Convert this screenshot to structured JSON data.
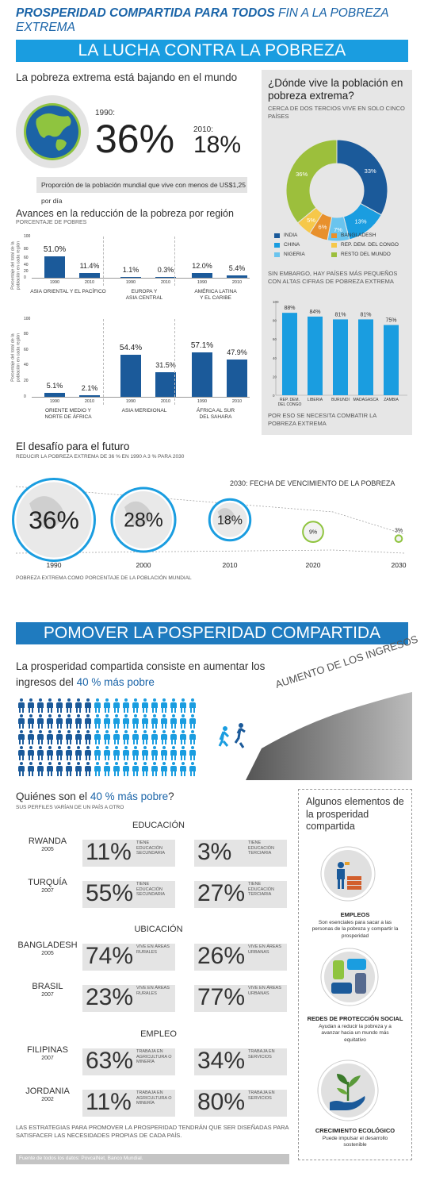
{
  "header": {
    "title_bold": "PROSPERIDAD COMPARTIDA PARA TODOS",
    "title_light": "FIN A LA POBREZA EXTREMA",
    "banner1": "LA LUCHA CONTRA LA POBREZA",
    "banner2": "POMOVER LA POSPERIDAD COMPARTIDA"
  },
  "extreme": {
    "heading": "La pobreza extrema está bajando en el mundo",
    "y1990_label": "1990:",
    "y1990_value": "36%",
    "y2010_label": "2010:",
    "y2010_value": "18%",
    "note": "Proporción de la población mundial que vive con menos de US$1,25 por día"
  },
  "regions": {
    "heading": "Avances en la reducción de la pobreza por región",
    "subheading": "PORCENTAJE DE POBRES",
    "ylabel": "Porcentaje del total de la población en cada región",
    "ticks_top": [
      "100",
      "80",
      "60",
      "40",
      "20",
      "0"
    ],
    "ticks_bottom": [
      "100",
      "80",
      "60",
      "40",
      "20",
      "0"
    ],
    "x_years": [
      "1990",
      "2010"
    ],
    "groups": [
      {
        "name": "ASIA ORIENTAL Y EL PACÍFICO",
        "v1990": 51.0,
        "v2010": 11.4,
        "l1990": "51.0%",
        "l2010": "11.4%"
      },
      {
        "name": "EUROPA Y\nASIA CENTRAL",
        "v1990": 1.1,
        "v2010": 0.3,
        "l1990": "1.1%",
        "l2010": "0.3%"
      },
      {
        "name": "AMÉRICA LATINA\nY EL CARIBE",
        "v1990": 12.0,
        "v2010": 5.4,
        "l1990": "12.0%",
        "l2010": "5.4%"
      },
      {
        "name": "ORIENTE MEDIO Y\nNORTE DE ÁFRICA",
        "v1990": 5.1,
        "v2010": 2.1,
        "l1990": "5.1%",
        "l2010": "2.1%"
      },
      {
        "name": "ASIA MERIDIONAL",
        "v1990": 54.4,
        "v2010": 31.5,
        "l1990": "54.4%",
        "l2010": "31.5%"
      },
      {
        "name": "ÁFRICA AL SUR\nDEL SAHARA",
        "v1990": 57.1,
        "v2010": 47.9,
        "l1990": "57.1%",
        "l2010": "47.9%"
      }
    ]
  },
  "where": {
    "heading": "¿Dónde vive la población en pobreza extrema?",
    "sub": "CERCA DE DOS TERCIOS VIVE EN SOLO CINCO PAÍSES",
    "slices": [
      {
        "name": "INDIA",
        "value": 33,
        "label": "33%",
        "color": "#1b5a9a"
      },
      {
        "name": "CHINA",
        "value": 13,
        "label": "13%",
        "color": "#1a9de0"
      },
      {
        "name": "NIGERIA",
        "value": 7,
        "label": "7%",
        "color": "#6ac4ee"
      },
      {
        "name": "BANGLADESH",
        "value": 6,
        "label": "6%",
        "color": "#e8902c"
      },
      {
        "name": "REP. DEM. DEL CONGO",
        "value": 5,
        "label": "5%",
        "color": "#f6c84a"
      },
      {
        "name": "RESTO DEL MUNDO",
        "value": 36,
        "label": "36%",
        "color": "#9cbf3c"
      }
    ],
    "small_heading": "SIN EMBARGO, HAY PAÍSES MÁS PEQUEÑOS CON ALTAS CIFRAS DE POBREZA EXTREMA",
    "ticks": [
      "100",
      "80",
      "60",
      "40",
      "20",
      "0"
    ],
    "countries": [
      {
        "name": "REP. DEM.\nDEL CONGO",
        "value": 88,
        "label": "88%"
      },
      {
        "name": "LIBERIA",
        "value": 84,
        "label": "84%"
      },
      {
        "name": "BURUNDI",
        "value": 81,
        "label": "81%"
      },
      {
        "name": "MADAGASCA",
        "value": 81,
        "label": "81%"
      },
      {
        "name": "ZAMBIA",
        "value": 75,
        "label": "75%"
      }
    ],
    "conclusion": "POR ESO SE NECESITA COMBATIR LA POBREZA EXTREMA"
  },
  "future": {
    "heading": "El desafío para el futuro",
    "sub": "REDUCIR LA POBREZA EXTREMA DE 36 % EN 1990 A 3 % PARA 2030",
    "deadline": "2030: FECHA DE VENCIMIENTO DE LA POBREZA",
    "circles": [
      {
        "year": "1990",
        "value": 36,
        "label": "36%"
      },
      {
        "year": "2000",
        "value": 28,
        "label": "28%"
      },
      {
        "year": "2010",
        "value": 18,
        "label": "18%"
      },
      {
        "year": "2020",
        "value": 9,
        "label": "9%"
      },
      {
        "year": "2030",
        "value": 3,
        "label": "3%"
      }
    ],
    "footnote": "POBREZA EXTREMA COMO PORCENTAJE DE LA POBLACIÓN MUNDIAL"
  },
  "prosperity": {
    "intro_1": "La prosperidad compartida consiste en aumentar los",
    "intro_2": "ingresos del",
    "intro_highlight": "40 % más pobre",
    "slope_label": "AUMENTO DE LOS INGRESOS"
  },
  "who": {
    "heading_start": "Quiénes son el",
    "heading_highlight": "40 % más pobre",
    "heading_end": "?",
    "sub": "SUS PERFILES VARÍAN DE UN PAÍS A OTRO",
    "sections": [
      {
        "title": "EDUCACIÓN",
        "rows": [
          {
            "country": "RWANDA",
            "year": "2005",
            "v1": "11%",
            "d1": "TIENE EDUCACIÓN SECUNDARIA",
            "v2": "3%",
            "d2": "TIENE EDUCACIÓN TERCIARIA"
          },
          {
            "country": "TURQUÍA",
            "year": "2007",
            "v1": "55%",
            "d1": "TIENE EDUCACIÓN SECUNDARIA",
            "v2": "27%",
            "d2": "TIENE EDUCACIÓN TERCIARIA"
          }
        ]
      },
      {
        "title": "UBICACIÓN",
        "rows": [
          {
            "country": "BANGLADESH",
            "year": "2005",
            "v1": "74%",
            "d1": "VIVE EN ÁREAS RURALES",
            "v2": "26%",
            "d2": "VIVE EN ÁREAS URBANAS"
          },
          {
            "country": "BRASIL",
            "year": "2007",
            "v1": "23%",
            "d1": "VIVE EN ÁREAS RURALES",
            "v2": "77%",
            "d2": "VIVE EN ÁREAS URBANAS"
          }
        ]
      },
      {
        "title": "EMPLEO",
        "rows": [
          {
            "country": "FILIPINAS",
            "year": "2007",
            "v1": "63%",
            "d1": "TRABAJA EN AGRICULTURA O MINERÍA",
            "v2": "34%",
            "d2": "TRABAJA EN SERVICIOS"
          },
          {
            "country": "JORDANIA",
            "year": "2002",
            "v1": "11%",
            "d1": "TRABAJA EN AGRICULTURA O MINERÍA",
            "v2": "80%",
            "d2": "TRABAJA EN SERVICIOS"
          }
        ]
      }
    ],
    "closing": "LAS ESTRATEGIAS PARA PROMOVER LA PROSPERIDAD TENDRÁN QUE SER DISEÑADAS PARA SATISFACER LAS NECESIDADES PROPIAS DE CADA PAÍS.",
    "source": "Fuente de todos los datos: PovcalNet, Banco Mundial."
  },
  "elements": {
    "heading": "Algunos elementos de la prosperidad compartida",
    "items": [
      {
        "title": "EMPLEOS",
        "desc": "Son esenciales para sacar a las personas de la pobreza y compartir la prosperidad",
        "icon": "worker-icon"
      },
      {
        "title": "REDES DE PROTECCIÓN SOCIAL",
        "desc": "Ayudan a reducir la pobreza y a avanzar hacia un mundo más equitativo",
        "icon": "hands-icon"
      },
      {
        "title": "CRECIMIENTO ECOLÓGICO",
        "desc": "Puede impulsar el desarrollo sostenible",
        "icon": "plant-icon"
      }
    ]
  },
  "chart_data": [
    {
      "type": "bar",
      "title": "Avances en la reducción de la pobreza por región",
      "ylabel": "Porcentaje del total de la población en cada región",
      "ylim": [
        0,
        100
      ],
      "categories": [
        "ASIA ORIENTAL Y EL PACÍFICO",
        "EUROPA Y ASIA CENTRAL",
        "AMÉRICA LATINA Y EL CARIBE",
        "ORIENTE MEDIO Y NORTE DE ÁFRICA",
        "ASIA MERIDIONAL",
        "ÁFRICA AL SUR DEL SAHARA"
      ],
      "series": [
        {
          "name": "1990",
          "values": [
            51.0,
            1.1,
            12.0,
            5.1,
            54.4,
            57.1
          ]
        },
        {
          "name": "2010",
          "values": [
            11.4,
            0.3,
            5.4,
            2.1,
            31.5,
            47.9
          ]
        }
      ]
    },
    {
      "type": "pie",
      "title": "¿Dónde vive la población en pobreza extrema?",
      "categories": [
        "INDIA",
        "CHINA",
        "NIGERIA",
        "BANGLADESH",
        "REP. DEM. DEL CONGO",
        "RESTO DEL MUNDO"
      ],
      "values": [
        33,
        13,
        7,
        6,
        5,
        36
      ]
    },
    {
      "type": "bar",
      "title": "SIN EMBARGO, HAY PAÍSES MÁS PEQUEÑOS CON ALTAS CIFRAS DE POBREZA EXTREMA",
      "ylim": [
        0,
        100
      ],
      "categories": [
        "REP. DEM. DEL CONGO",
        "LIBERIA",
        "BURUNDI",
        "MADAGASCA",
        "ZAMBIA"
      ],
      "values": [
        88,
        84,
        81,
        81,
        75
      ]
    }
  ]
}
